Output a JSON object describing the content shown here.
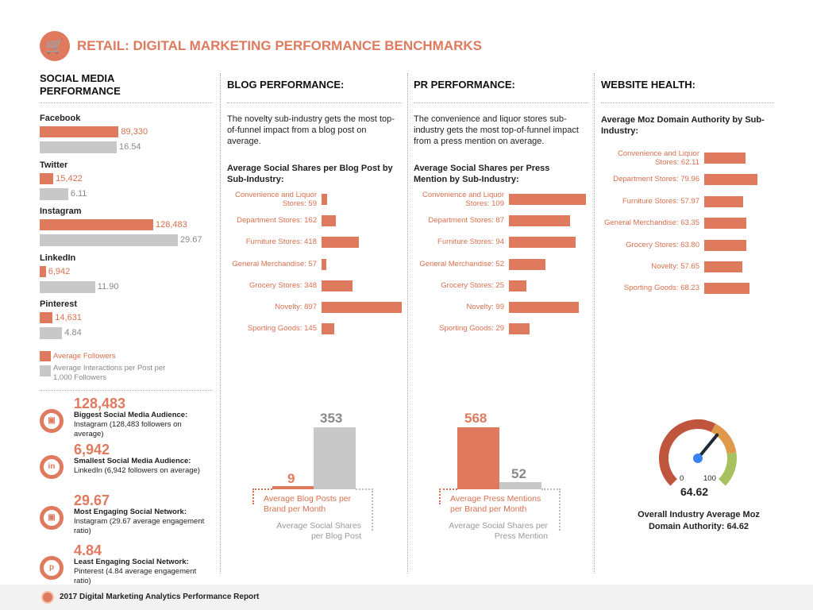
{
  "header": {
    "title": "RETAIL: DIGITAL MARKETING PERFORMANCE BENCHMARKS",
    "icon": "shopping-cart-icon"
  },
  "colors": {
    "accent": "#e07a5f",
    "secondary": "#c8c8c8",
    "gauge_red": "#c0553e",
    "gauge_orange": "#e0994a",
    "gauge_green": "#a8c060",
    "needle_hub": "#3b82f6"
  },
  "social": {
    "heading": "SOCIAL MEDIA PERFORMANCE",
    "legend": {
      "followers": "Average Followers",
      "interactions": "Average Interactions per Post per 1,000 Followers"
    },
    "stats": [
      {
        "icon": "instagram-icon",
        "value": "128,483",
        "title": "Biggest Social Media Audience:",
        "text": "Instagram (128,483 followers on average)"
      },
      {
        "icon": "linkedin-icon",
        "value": "6,942",
        "title": "Smallest Social Media Audience:",
        "text": "LinkedIn (6,942 followers on average)"
      },
      {
        "icon": "instagram-icon",
        "value": "29.67",
        "title": "Most Engaging Social Network:",
        "text": "Instagram (29.67 average engagement ratio)"
      },
      {
        "icon": "pinterest-icon",
        "value": "4.84",
        "title": "Least Engaging Social Network:",
        "text": "Pinterest (4.84 average engagement ratio)"
      }
    ]
  },
  "blog": {
    "heading": "BLOG PERFORMANCE:",
    "text": "The novelty sub-industry gets the most top-of-funnel impact from a blog post on average.",
    "subheading": "Average Social Shares per Blog Post by Sub-Industry:",
    "compare": {
      "posts": "9",
      "shares": "353",
      "posts_label": "Average Blog Posts per Brand per Month",
      "shares_label": "Average Social Shares per Blog Post"
    }
  },
  "pr": {
    "heading": "PR PERFORMANCE:",
    "text": "The convenience and liquor stores sub-industry gets the most top-of-funnel impact from a press mention on average.",
    "subheading": "Average Social Shares per Press Mention by Sub-Industry:",
    "compare": {
      "mentions": "568",
      "shares": "52",
      "mentions_label": "Average Press Mentions per Brand per Month",
      "shares_label": "Average Social Shares per Press Mention"
    }
  },
  "web": {
    "heading": "WEBSITE HEALTH:",
    "subheading": "Average Moz Domain Authority by Sub-Industry:",
    "gauge": {
      "min": "0",
      "max": "100",
      "value": "64.62",
      "caption": "Overall Industry Average Moz Domain Authority: 64.62"
    }
  },
  "footer": {
    "text": "2017 Digital Marketing Analytics Performance Report",
    "icon": "badge-logo-icon"
  },
  "chart_data": [
    {
      "type": "bar",
      "orientation": "horizontal",
      "categories": [
        "Facebook",
        "Twitter",
        "Instagram",
        "LinkedIn",
        "Pinterest"
      ],
      "series": [
        {
          "name": "Average Followers",
          "values": [
            89330,
            15422,
            128483,
            6942,
            14631
          ],
          "labels": [
            "89,330",
            "15,422",
            "128,483",
            "6,942",
            "14,631"
          ]
        },
        {
          "name": "Average Interactions per Post per 1,000 Followers",
          "values": [
            16.54,
            6.11,
            29.67,
            11.9,
            4.84
          ],
          "labels": [
            "16.54",
            "6.11",
            "29.67",
            "11.90",
            "4.84"
          ]
        }
      ]
    },
    {
      "type": "bar",
      "orientation": "horizontal",
      "title": "Average Social Shares per Blog Post by Sub-Industry:",
      "labels": [
        "Convenience and Liquor Stores: 59",
        "Department Stores: 162",
        "Furniture Stores: 418",
        "General Merchandise: 57",
        "Grocery Stores: 348",
        "Novelty: 897",
        "Sporting Goods: 145"
      ],
      "values": [
        59,
        162,
        418,
        57,
        348,
        897,
        145
      ]
    },
    {
      "type": "bar",
      "orientation": "horizontal",
      "title": "Average Social Shares per Press Mention by Sub-Industry:",
      "labels": [
        "Convenience and Liquor Stores: 109",
        "Department Stores: 87",
        "Furniture Stores: 94",
        "General Merchandise: 52",
        "Grocery Stores: 25",
        "Novelty: 99",
        "Sporting Goods: 29"
      ],
      "values": [
        109,
        87,
        94,
        52,
        25,
        99,
        29
      ]
    },
    {
      "type": "bar",
      "orientation": "horizontal",
      "title": "Average Moz Domain Authority by Sub-Industry:",
      "labels": [
        "Convenience and Liquor Stores: 62.11",
        "Department Stores: 79.96",
        "Furniture Stores: 57.97",
        "General Merchandise: 63.35",
        "Grocery Stores: 63.80",
        "Novelty: 57.65",
        "Sporting Goods: 68.23"
      ],
      "values": [
        62.11,
        79.96,
        57.97,
        63.35,
        63.8,
        57.65,
        68.23
      ]
    },
    {
      "type": "bar",
      "categories": [
        "Average Blog Posts per Brand per Month",
        "Average Social Shares per Blog Post"
      ],
      "values": [
        9,
        353
      ]
    },
    {
      "type": "bar",
      "categories": [
        "Average Press Mentions per Brand per Month",
        "Average Social Shares per Press Mention"
      ],
      "values": [
        568,
        52
      ]
    },
    {
      "type": "gauge",
      "min": 0,
      "max": 100,
      "value": 64.62
    }
  ]
}
